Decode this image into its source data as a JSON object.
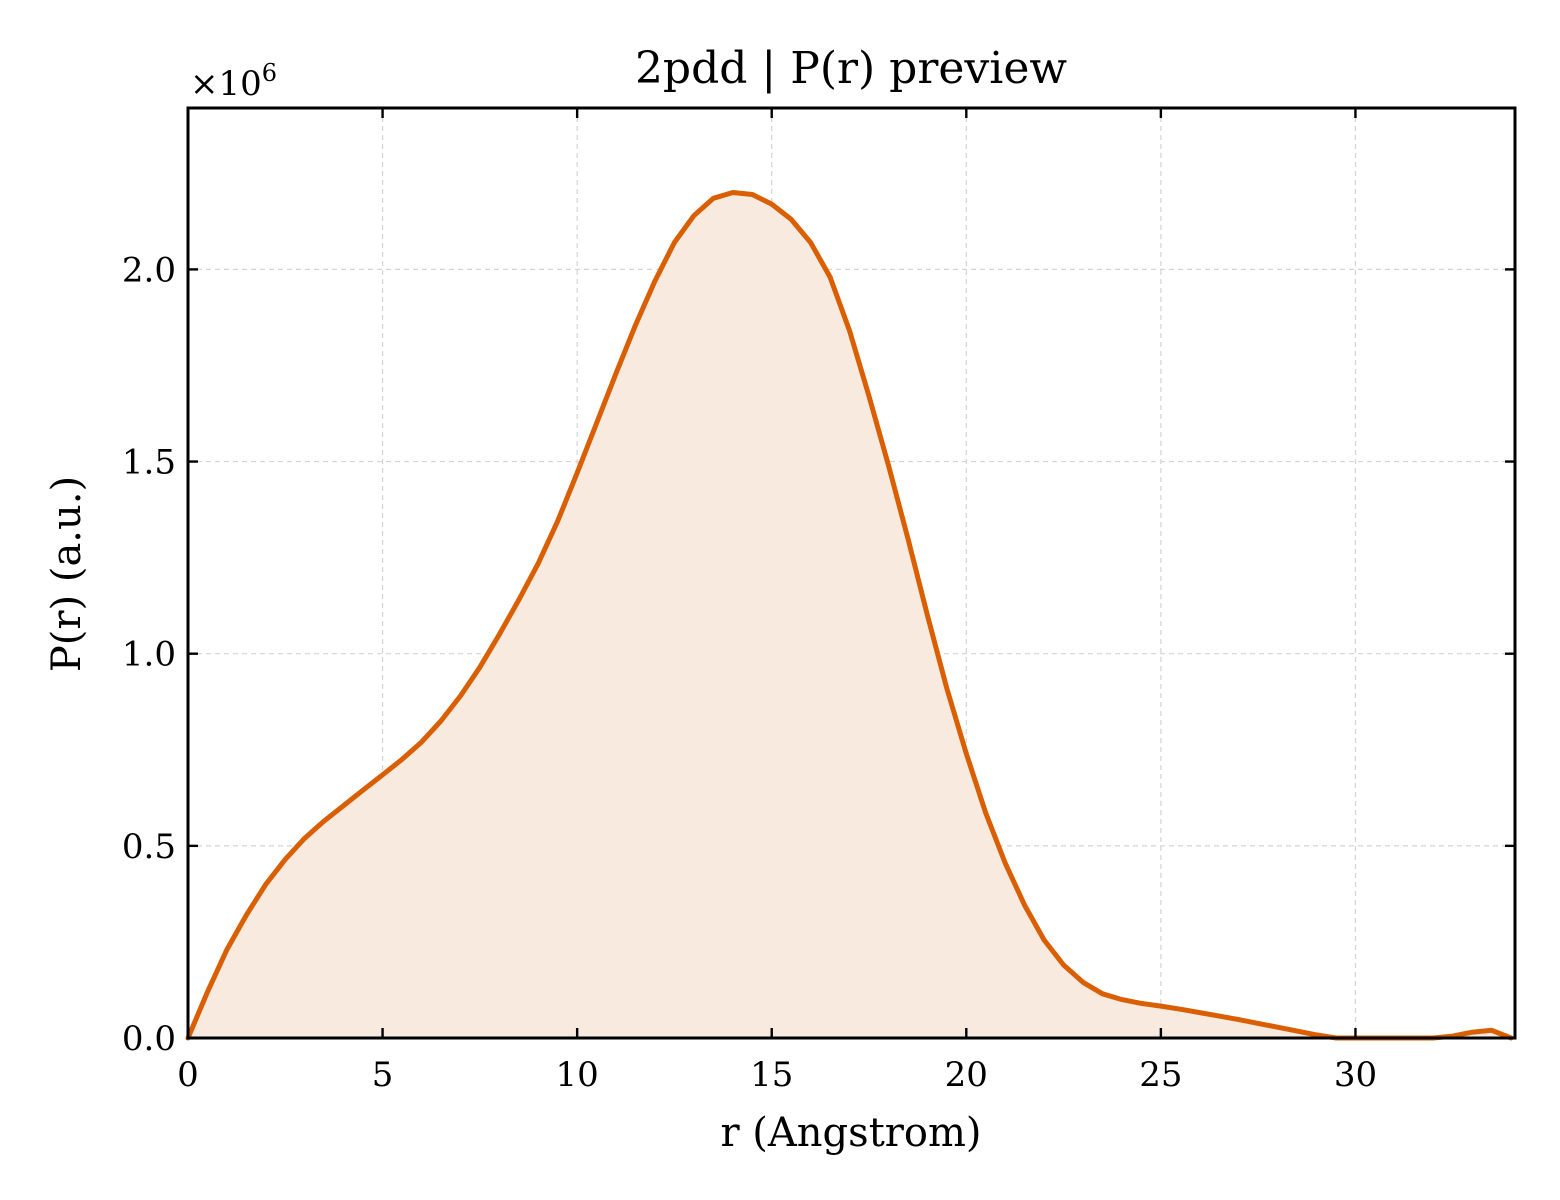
{
  "chart_data": {
    "type": "area",
    "title": "2pdd | P(r) preview",
    "xlabel": "r (Angstrom)",
    "ylabel": "P(r) (a.u.)",
    "y_multiplier": "×10",
    "y_multiplier_exponent": "6",
    "xlim": [
      0,
      34.1
    ],
    "ylim": [
      0,
      2.42
    ],
    "x_ticks": [
      0,
      5,
      10,
      15,
      20,
      25,
      30
    ],
    "x_tick_labels": [
      "0",
      "5",
      "10",
      "15",
      "20",
      "25",
      "30"
    ],
    "y_ticks": [
      0.0,
      0.5,
      1.0,
      1.5,
      2.0
    ],
    "y_tick_labels": [
      "0.0",
      "0.5",
      "1.0",
      "1.5",
      "2.0"
    ],
    "grid": true,
    "line_color": "#d95f02",
    "fill_color": "#f8eadf",
    "series": [
      {
        "x": [
          0,
          0.5,
          1,
          1.5,
          2,
          2.5,
          3,
          3.5,
          4,
          4.5,
          5,
          5.5,
          6,
          6.5,
          7,
          7.5,
          8,
          8.5,
          9,
          9.5,
          10,
          10.5,
          11,
          11.5,
          12,
          12.5,
          13,
          13.5,
          14,
          14.5,
          15,
          15.5,
          16,
          16.5,
          17,
          17.5,
          18,
          18.5,
          19,
          19.5,
          20,
          20.5,
          21,
          21.5,
          22,
          22.5,
          23,
          23.5,
          24,
          24.5,
          25,
          25.5,
          26,
          26.5,
          27,
          27.5,
          28,
          28.5,
          29,
          29.5,
          30,
          30.5,
          31,
          31.5,
          32,
          32.5,
          33,
          33.5,
          34
        ],
        "y": [
          0.0,
          0.12,
          0.23,
          0.32,
          0.4,
          0.465,
          0.52,
          0.565,
          0.605,
          0.645,
          0.685,
          0.725,
          0.77,
          0.825,
          0.89,
          0.965,
          1.05,
          1.14,
          1.235,
          1.345,
          1.47,
          1.6,
          1.73,
          1.855,
          1.97,
          2.07,
          2.14,
          2.185,
          2.2,
          2.195,
          2.17,
          2.13,
          2.07,
          1.98,
          1.84,
          1.67,
          1.49,
          1.3,
          1.1,
          0.91,
          0.74,
          0.585,
          0.455,
          0.345,
          0.255,
          0.19,
          0.145,
          0.115,
          0.1,
          0.09,
          0.083,
          0.075,
          0.066,
          0.057,
          0.048,
          0.038,
          0.028,
          0.018,
          0.008,
          0.0,
          0.0,
          0.0,
          0.0,
          0.0,
          0.0,
          0.005,
          0.015,
          0.02,
          0.0
        ]
      }
    ]
  }
}
